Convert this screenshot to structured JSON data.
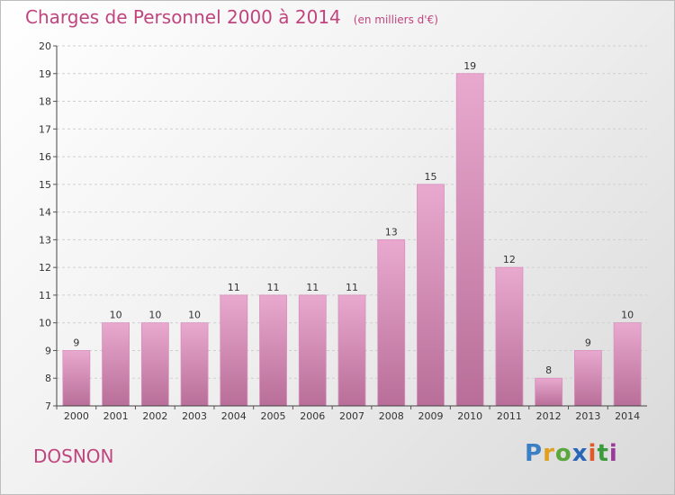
{
  "header": {
    "title": "Charges de Personnel 2000 à 2014",
    "subtitle": "(en milliers d'€)"
  },
  "footer": {
    "commune": "DOSNON"
  },
  "logo": {
    "letters": [
      "P",
      "r",
      "o",
      "x",
      "i",
      "t",
      "i"
    ],
    "colors": [
      "#3b7fc4",
      "#e0a020",
      "#5aa83c",
      "#2a66b8",
      "#e05a2a",
      "#3b9a3b",
      "#9a3b9a"
    ]
  },
  "colors": {
    "bar_top": "#e9a9cf",
    "bar_bottom": "#b86e98",
    "accent": "#c0457e"
  },
  "chart_data": {
    "type": "bar",
    "title": "Charges de Personnel 2000 à 2014",
    "subtitle": "(en milliers d'€)",
    "categories": [
      "2000",
      "2001",
      "2002",
      "2003",
      "2004",
      "2005",
      "2006",
      "2007",
      "2008",
      "2009",
      "2010",
      "2011",
      "2012",
      "2013",
      "2014"
    ],
    "values": [
      9,
      10,
      10,
      10,
      11,
      11,
      11,
      11,
      13,
      15,
      19,
      12,
      8,
      9,
      10
    ],
    "yticks": [
      7,
      8,
      9,
      10,
      11,
      12,
      13,
      14,
      15,
      16,
      17,
      18,
      19,
      20
    ],
    "ylim": [
      7,
      20
    ],
    "grid": true,
    "xlabel": "",
    "ylabel": ""
  }
}
